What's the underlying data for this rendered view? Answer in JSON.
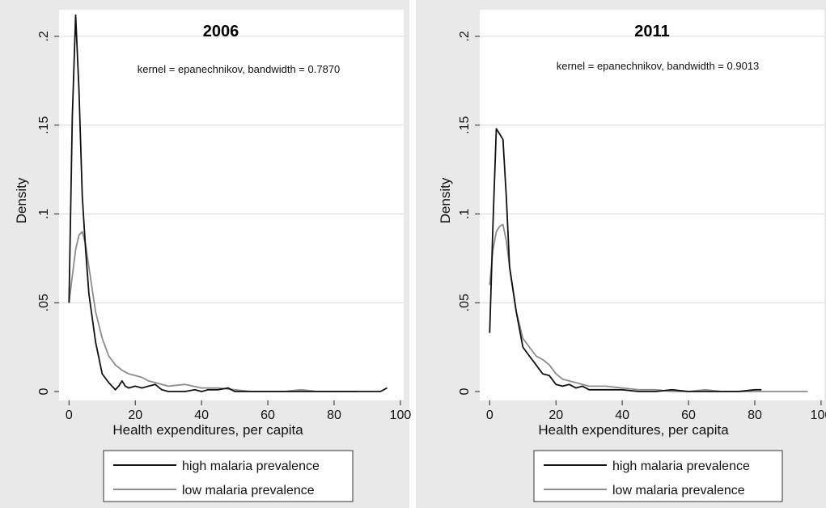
{
  "chart_data": [
    {
      "type": "line",
      "title": "2006",
      "annotation": "kernel = epanechnikov, bandwidth = 0.7870",
      "xlabel": "Health expenditures, per capita",
      "ylabel": "Density",
      "xlim": [
        -3,
        101
      ],
      "ylim": [
        -0.005,
        0.215
      ],
      "xticks": [
        0,
        20,
        40,
        60,
        80,
        100
      ],
      "yticks": [
        0,
        0.05,
        0.1,
        0.15,
        0.2
      ],
      "ytick_labels": [
        "0",
        ".05",
        ".1",
        ".15",
        ".2"
      ],
      "legend": [
        "high malaria prevalence",
        "low malaria prevalence"
      ],
      "series": [
        {
          "name": "high malaria prevalence",
          "color": "#111111",
          "x": [
            0,
            1,
            2,
            3,
            4,
            5,
            6,
            8,
            10,
            12,
            14,
            15,
            16,
            17,
            18,
            20,
            22,
            24,
            26,
            28,
            30,
            32,
            35,
            38,
            40,
            42,
            45,
            48,
            50,
            52,
            55,
            60,
            65,
            70,
            75,
            80,
            85,
            88,
            90,
            92,
            94,
            96
          ],
          "y": [
            0.05,
            0.155,
            0.212,
            0.17,
            0.11,
            0.08,
            0.055,
            0.028,
            0.01,
            0.005,
            0.001,
            0.003,
            0.006,
            0.003,
            0.002,
            0.003,
            0.002,
            0.003,
            0.004,
            0.001,
            0.0,
            0.0,
            0.0,
            0.001,
            0.0,
            0.001,
            0.001,
            0.002,
            0.0,
            0.0,
            0.0,
            0.0,
            0.0,
            0.0,
            0.0,
            0.0,
            0.0,
            0.0,
            0.0,
            0.0,
            0.0,
            0.002
          ]
        },
        {
          "name": "low malaria prevalence",
          "color": "#8c8c8c",
          "x": [
            0,
            1,
            2,
            3,
            4,
            5,
            6,
            8,
            10,
            12,
            14,
            16,
            18,
            20,
            22,
            24,
            26,
            28,
            30,
            35,
            40,
            45,
            50,
            55,
            60,
            65,
            70,
            75,
            80,
            85,
            87
          ],
          "y": [
            0.05,
            0.065,
            0.08,
            0.088,
            0.09,
            0.083,
            0.07,
            0.045,
            0.03,
            0.02,
            0.015,
            0.012,
            0.01,
            0.009,
            0.008,
            0.006,
            0.005,
            0.004,
            0.003,
            0.004,
            0.002,
            0.002,
            0.001,
            0.0,
            0.0,
            0.0,
            0.001,
            0.0,
            0.0,
            0.0,
            0.0
          ]
        }
      ]
    },
    {
      "type": "line",
      "title": "2011",
      "annotation": "kernel = epanechnikov, bandwidth = 0.9013",
      "xlabel": "Health expenditures, per capita",
      "ylabel": "Density",
      "xlim": [
        -3,
        101
      ],
      "ylim": [
        -0.005,
        0.215
      ],
      "xticks": [
        0,
        20,
        40,
        60,
        80,
        100
      ],
      "yticks": [
        0,
        0.05,
        0.1,
        0.15,
        0.2
      ],
      "ytick_labels": [
        "0",
        ".05",
        ".1",
        ".15",
        ".2"
      ],
      "legend": [
        "high malaria prevalence",
        "low malaria prevalence"
      ],
      "series": [
        {
          "name": "high malaria prevalence",
          "color": "#111111",
          "x": [
            0,
            1,
            2,
            3,
            4,
            5,
            6,
            8,
            10,
            12,
            14,
            16,
            18,
            20,
            22,
            24,
            26,
            28,
            30,
            35,
            40,
            45,
            50,
            55,
            60,
            65,
            70,
            75,
            80,
            82
          ],
          "y": [
            0.033,
            0.095,
            0.148,
            0.145,
            0.142,
            0.11,
            0.07,
            0.045,
            0.025,
            0.02,
            0.015,
            0.01,
            0.009,
            0.004,
            0.003,
            0.004,
            0.002,
            0.003,
            0.001,
            0.001,
            0.001,
            0.0,
            0.0,
            0.001,
            0.0,
            0.0,
            0.0,
            0.0,
            0.001,
            0.001
          ]
        },
        {
          "name": "low malaria prevalence",
          "color": "#8c8c8c",
          "x": [
            0,
            1,
            2,
            3,
            4,
            5,
            6,
            8,
            10,
            12,
            14,
            16,
            18,
            20,
            22,
            24,
            26,
            28,
            30,
            35,
            40,
            45,
            50,
            55,
            60,
            65,
            70,
            75,
            80,
            85,
            90,
            96
          ],
          "y": [
            0.06,
            0.08,
            0.09,
            0.093,
            0.094,
            0.085,
            0.07,
            0.045,
            0.03,
            0.025,
            0.02,
            0.018,
            0.015,
            0.01,
            0.007,
            0.006,
            0.005,
            0.004,
            0.003,
            0.003,
            0.002,
            0.001,
            0.001,
            0.0,
            0.0,
            0.001,
            0.0,
            0.0,
            0.0,
            0.0,
            0.0,
            0.0
          ]
        }
      ]
    }
  ]
}
